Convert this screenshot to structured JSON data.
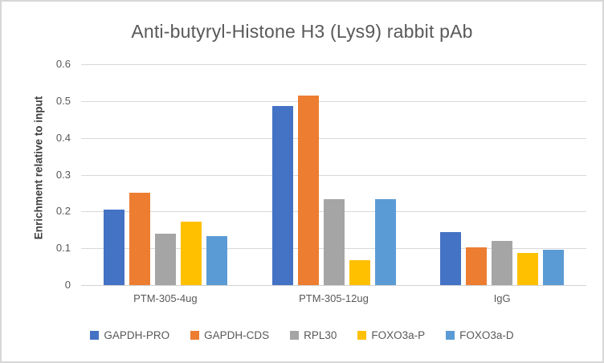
{
  "title": "Anti-butyryl-Histone H3 (Lys9) rabbit pAb",
  "y_axis_label": "Enrichment relative to input",
  "chart_data": {
    "type": "bar",
    "title": "Anti-butyryl-Histone H3 (Lys9) rabbit pAb",
    "xlabel": "",
    "ylabel": "Enrichment relative to input",
    "ylim": [
      0,
      0.6
    ],
    "ytick_step": 0.1,
    "ytick_labels": [
      "0",
      "0.1",
      "0.2",
      "0.3",
      "0.4",
      "0.5",
      "0.6"
    ],
    "grid": true,
    "legend_position": "bottom",
    "categories": [
      "PTM-305-4ug",
      "PTM-305-12ug",
      "IgG"
    ],
    "series": [
      {
        "name": "GAPDH-PRO",
        "color": "#4472C4",
        "values": [
          0.206,
          0.486,
          0.145
        ]
      },
      {
        "name": "GAPDH-CDS",
        "color": "#ED7D31",
        "values": [
          0.252,
          0.516,
          0.103
        ]
      },
      {
        "name": "RPL30",
        "color": "#A5A5A5",
        "values": [
          0.14,
          0.233,
          0.121
        ]
      },
      {
        "name": "FOXO3a-P",
        "color": "#FFC000",
        "values": [
          0.172,
          0.068,
          0.087
        ]
      },
      {
        "name": "FOXO3a-D",
        "color": "#5B9BD5",
        "values": [
          0.134,
          0.234,
          0.097
        ]
      }
    ]
  },
  "colors": {
    "title_text": "#595959",
    "axis_text": "#595959",
    "axis_label_text": "#404040",
    "gridline": "#D9D9D9",
    "chart_border": "#D7D7D7",
    "background": "#FFFFFF"
  }
}
